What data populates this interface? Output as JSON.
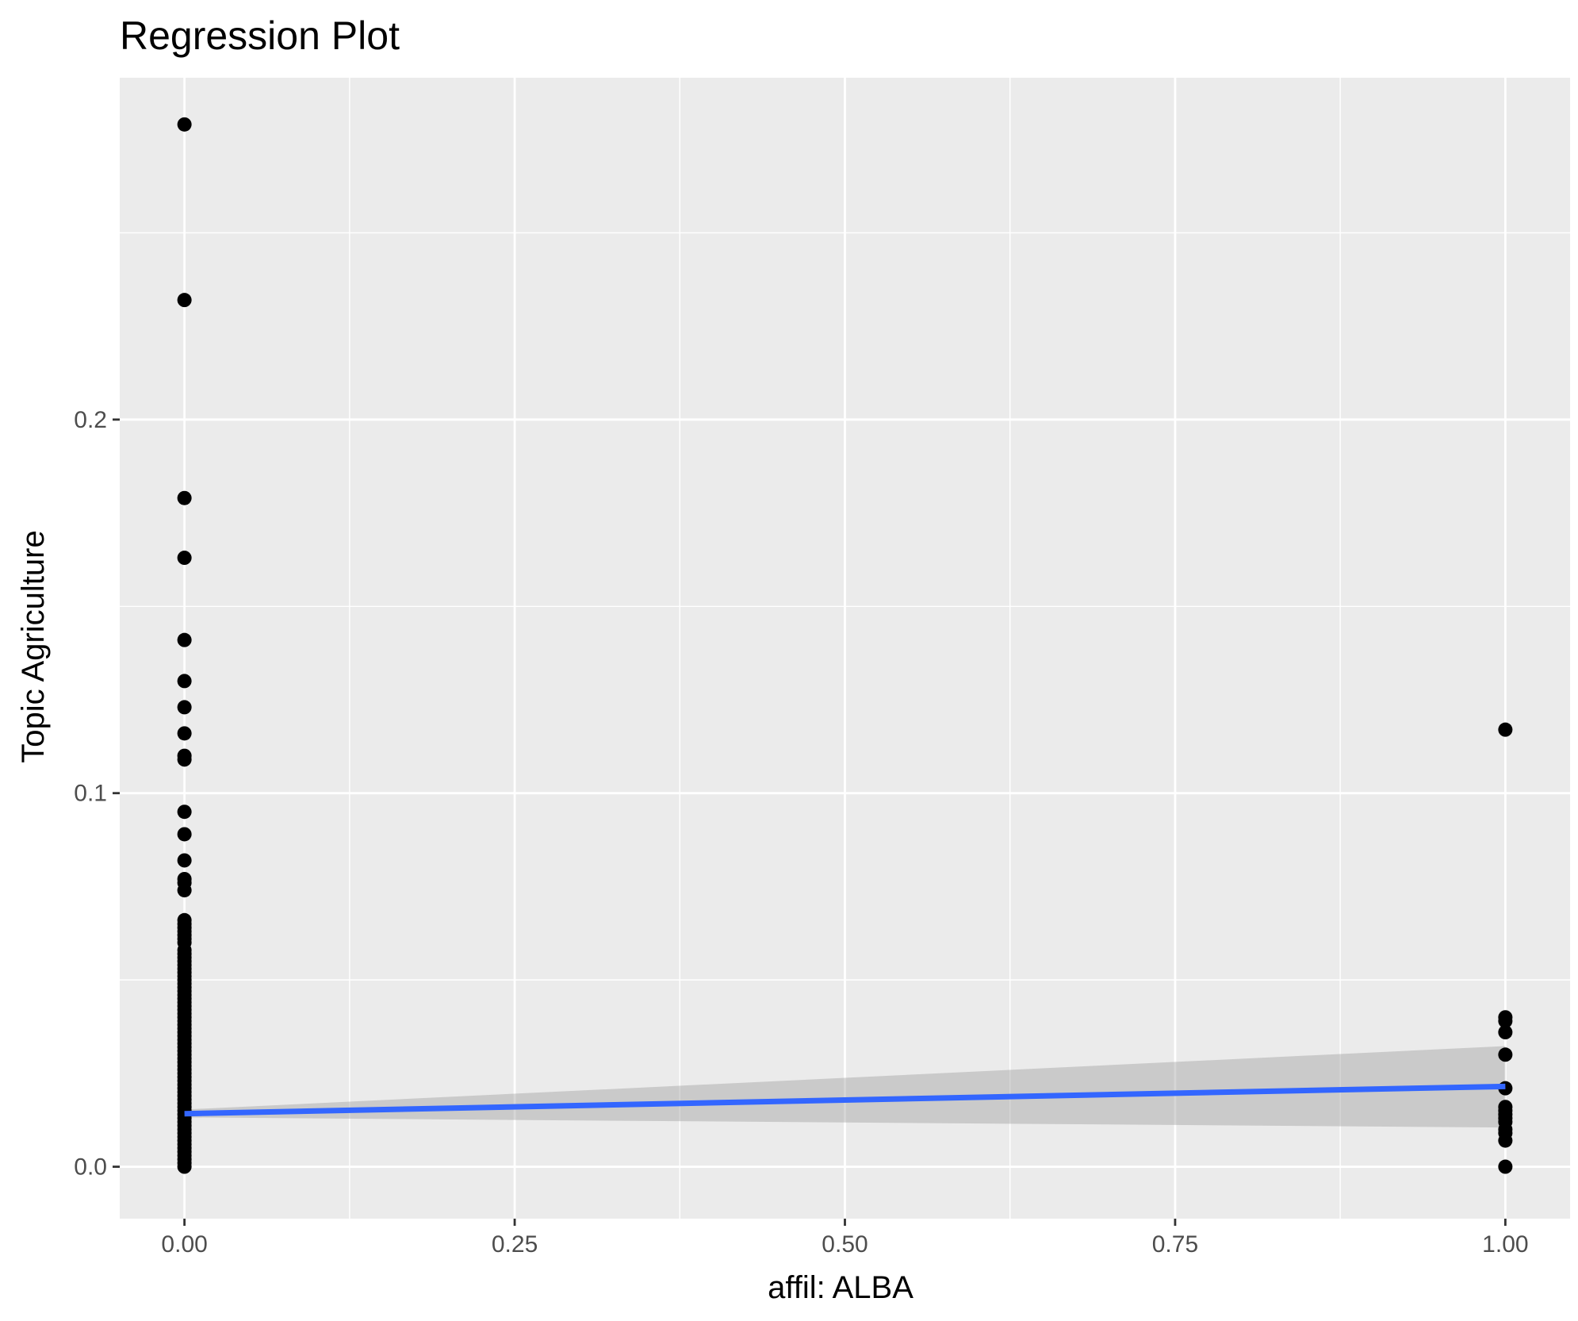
{
  "chart_data": {
    "type": "scatter",
    "title": "Regression Plot",
    "xlabel": "affil: ALBA",
    "ylabel": "Topic Agriculture",
    "xlim": [
      -0.049,
      1.049
    ],
    "ylim": [
      -0.0139,
      0.2915
    ],
    "x_ticks": [
      0.0,
      0.25,
      0.5,
      0.75,
      1.0
    ],
    "x_tick_labels": [
      "0.00",
      "0.25",
      "0.50",
      "0.75",
      "1.00"
    ],
    "y_ticks": [
      0.0,
      0.1,
      0.2
    ],
    "y_tick_labels": [
      "0.0",
      "0.1",
      "0.2"
    ],
    "grid": true,
    "legend": "none",
    "colors": {
      "panel": "#ebebeb",
      "grid": "#ffffff",
      "points": "#000000",
      "line": "#3366ff",
      "band": "#999999"
    },
    "series": [
      {
        "kind": "points",
        "points": [
          [
            0,
            0.279
          ],
          [
            0,
            0.232
          ],
          [
            0,
            0.179
          ],
          [
            0,
            0.163
          ],
          [
            0,
            0.141
          ],
          [
            0,
            0.13
          ],
          [
            0,
            0.123
          ],
          [
            0,
            0.116
          ],
          [
            0,
            0.11
          ],
          [
            0,
            0.109
          ],
          [
            0,
            0.095
          ],
          [
            0,
            0.089
          ],
          [
            0,
            0.082
          ],
          [
            0,
            0.077
          ],
          [
            0,
            0.076
          ],
          [
            0,
            0.074
          ],
          [
            0,
            0.066
          ],
          [
            0,
            0.065
          ],
          [
            0,
            0.064
          ],
          [
            0,
            0.063
          ],
          [
            0,
            0.062
          ],
          [
            0,
            0.061
          ],
          [
            0,
            0.06
          ],
          [
            0,
            0.058
          ],
          [
            0,
            0.057
          ],
          [
            0,
            0.056
          ],
          [
            0,
            0.055
          ],
          [
            0,
            0.054
          ],
          [
            0,
            0.053
          ],
          [
            0,
            0.052
          ],
          [
            0,
            0.051
          ],
          [
            0,
            0.05
          ],
          [
            0,
            0.049
          ],
          [
            0,
            0.048
          ],
          [
            0,
            0.047
          ],
          [
            0,
            0.046
          ],
          [
            0,
            0.045
          ],
          [
            0,
            0.044
          ],
          [
            0,
            0.043
          ],
          [
            0,
            0.042
          ],
          [
            0,
            0.041
          ],
          [
            0,
            0.04
          ],
          [
            0,
            0.039
          ],
          [
            0,
            0.038
          ],
          [
            0,
            0.037
          ],
          [
            0,
            0.036
          ],
          [
            0,
            0.035
          ],
          [
            0,
            0.034
          ],
          [
            0,
            0.033
          ],
          [
            0,
            0.032
          ],
          [
            0,
            0.031
          ],
          [
            0,
            0.03
          ],
          [
            0,
            0.029
          ],
          [
            0,
            0.028
          ],
          [
            0,
            0.027
          ],
          [
            0,
            0.026
          ],
          [
            0,
            0.025
          ],
          [
            0,
            0.024
          ],
          [
            0,
            0.023
          ],
          [
            0,
            0.022
          ],
          [
            0,
            0.021
          ],
          [
            0,
            0.02
          ],
          [
            0,
            0.019
          ],
          [
            0,
            0.018
          ],
          [
            0,
            0.017
          ],
          [
            0,
            0.016
          ],
          [
            0,
            0.015
          ],
          [
            0,
            0.014
          ],
          [
            0,
            0.013
          ],
          [
            0,
            0.012
          ],
          [
            0,
            0.011
          ],
          [
            0,
            0.01
          ],
          [
            0,
            0.009
          ],
          [
            0,
            0.008
          ],
          [
            0,
            0.007
          ],
          [
            0,
            0.006
          ],
          [
            0,
            0.005
          ],
          [
            0,
            0.004
          ],
          [
            0,
            0.003
          ],
          [
            0,
            0.002
          ],
          [
            0,
            0.001
          ],
          [
            0,
            0.0
          ],
          [
            1,
            0.117
          ],
          [
            1,
            0.04
          ],
          [
            1,
            0.039
          ],
          [
            1,
            0.036
          ],
          [
            1,
            0.03
          ],
          [
            1,
            0.021
          ],
          [
            1,
            0.016
          ],
          [
            1,
            0.015
          ],
          [
            1,
            0.014
          ],
          [
            1,
            0.013
          ],
          [
            1,
            0.012
          ],
          [
            1,
            0.01
          ],
          [
            1,
            0.009
          ],
          [
            1,
            0.007
          ],
          [
            1,
            0.0
          ]
        ]
      },
      {
        "kind": "regression",
        "line": [
          [
            0,
            0.0142
          ],
          [
            1,
            0.0215
          ]
        ],
        "confidence_band": {
          "lower": [
            [
              0,
              0.0132
            ],
            [
              1,
              0.0105
            ]
          ],
          "upper": [
            [
              0,
              0.0153
            ],
            [
              1,
              0.0323
            ]
          ]
        }
      }
    ]
  }
}
